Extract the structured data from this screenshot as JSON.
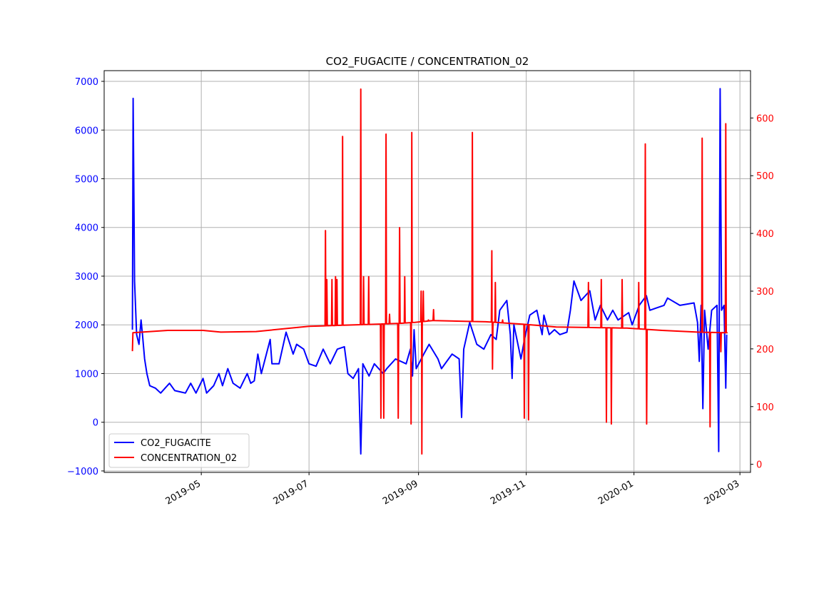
{
  "chart_data": {
    "type": "line",
    "title": "CO2_FUGACITE / CONCENTRATION_02",
    "x_type": "date",
    "x_origin": "2019-03-23",
    "x_unit": "days since x_origin",
    "xlim_days": [
      -16,
      350
    ],
    "x_ticks": [
      {
        "label": "2019-05",
        "day": 39
      },
      {
        "label": "2019-07",
        "day": 100
      },
      {
        "label": "2019-09",
        "day": 162
      },
      {
        "label": "2019-11",
        "day": 223
      },
      {
        "label": "2020-01",
        "day": 284
      },
      {
        "label": "2020-03",
        "day": 344
      }
    ],
    "grid": true,
    "legend_position": "lower-left",
    "left_axis": {
      "ylim": [
        -1030,
        7220
      ],
      "ticks": [
        -1000,
        0,
        1000,
        2000,
        3000,
        4000,
        5000,
        6000,
        7000
      ],
      "tick_labels": [
        "−1000",
        "0",
        "1000",
        "2000",
        "3000",
        "4000",
        "5000",
        "6000",
        "7000"
      ],
      "color": "#0000ff"
    },
    "right_axis": {
      "ylim": [
        -14,
        682
      ],
      "ticks": [
        0,
        100,
        200,
        300,
        400,
        500,
        600
      ],
      "tick_labels": [
        "0",
        "100",
        "200",
        "300",
        "400",
        "500",
        "600"
      ],
      "color": "#ff0000"
    },
    "series": [
      {
        "name": "CO2_FUGACITE",
        "axis": "left",
        "color": "#0000ff",
        "points": [
          [
            0,
            1900
          ],
          [
            0.4,
            6650
          ],
          [
            1.2,
            2900
          ],
          [
            2.4,
            1800
          ],
          [
            3.7,
            1600
          ],
          [
            4.9,
            2100
          ],
          [
            5.7,
            1800
          ],
          [
            6.9,
            1300
          ],
          [
            8.2,
            1000
          ],
          [
            9.8,
            750
          ],
          [
            13,
            700
          ],
          [
            16,
            600
          ],
          [
            21,
            800
          ],
          [
            24,
            650
          ],
          [
            30,
            600
          ],
          [
            33,
            800
          ],
          [
            36,
            600
          ],
          [
            40,
            900
          ],
          [
            42,
            600
          ],
          [
            46,
            750
          ],
          [
            49,
            1000
          ],
          [
            51,
            750
          ],
          [
            54,
            1100
          ],
          [
            57,
            800
          ],
          [
            61,
            700
          ],
          [
            65,
            1000
          ],
          [
            67,
            800
          ],
          [
            69,
            850
          ],
          [
            71,
            1400
          ],
          [
            73,
            1000
          ],
          [
            78,
            1700
          ],
          [
            79,
            1200
          ],
          [
            83,
            1200
          ],
          [
            87,
            1850
          ],
          [
            91,
            1400
          ],
          [
            93,
            1600
          ],
          [
            97,
            1500
          ],
          [
            100,
            1200
          ],
          [
            104,
            1150
          ],
          [
            108,
            1500
          ],
          [
            112,
            1200
          ],
          [
            116,
            1500
          ],
          [
            120,
            1550
          ],
          [
            122,
            1000
          ],
          [
            125,
            900
          ],
          [
            128,
            1100
          ],
          [
            129.3,
            -650
          ],
          [
            130.5,
            1200
          ],
          [
            134,
            950
          ],
          [
            137,
            1200
          ],
          [
            142,
            1000
          ],
          [
            144,
            1100
          ],
          [
            149,
            1300
          ],
          [
            155,
            1200
          ],
          [
            157.4,
            1500
          ],
          [
            158.6,
            950
          ],
          [
            159.5,
            1900
          ],
          [
            160.7,
            1100
          ],
          [
            165,
            1400
          ],
          [
            168,
            1600
          ],
          [
            173,
            1300
          ],
          [
            175,
            1100
          ],
          [
            179,
            1300
          ],
          [
            181,
            1400
          ],
          [
            185,
            1300
          ],
          [
            186.4,
            100
          ],
          [
            187.6,
            1500
          ],
          [
            191,
            2050
          ],
          [
            195,
            1600
          ],
          [
            199,
            1500
          ],
          [
            203,
            1800
          ],
          [
            206,
            1700
          ],
          [
            208,
            2300
          ],
          [
            212,
            2500
          ],
          [
            214,
            1800
          ],
          [
            215,
            900
          ],
          [
            216,
            2000
          ],
          [
            220,
            1300
          ],
          [
            222,
            1700
          ],
          [
            225,
            2200
          ],
          [
            229,
            2300
          ],
          [
            232,
            1800
          ],
          [
            233,
            2200
          ],
          [
            236,
            1800
          ],
          [
            239,
            1900
          ],
          [
            242,
            1800
          ],
          [
            246,
            1850
          ],
          [
            248,
            2300
          ],
          [
            250,
            2900
          ],
          [
            254,
            2500
          ],
          [
            259,
            2700
          ],
          [
            262,
            2100
          ],
          [
            265,
            2400
          ],
          [
            269,
            2100
          ],
          [
            272,
            2300
          ],
          [
            275,
            2100
          ],
          [
            281,
            2250
          ],
          [
            283,
            2000
          ],
          [
            287,
            2400
          ],
          [
            291,
            2600
          ],
          [
            293,
            2300
          ],
          [
            297,
            2350
          ],
          [
            301,
            2400
          ],
          [
            303,
            2550
          ],
          [
            310,
            2400
          ],
          [
            318,
            2450
          ],
          [
            320,
            2050
          ],
          [
            321,
            1250
          ],
          [
            322,
            2400
          ],
          [
            323,
            280
          ],
          [
            324,
            2300
          ],
          [
            326,
            1500
          ],
          [
            328,
            2300
          ],
          [
            331,
            2400
          ],
          [
            332,
            -600
          ],
          [
            332.8,
            6850
          ],
          [
            333.6,
            2300
          ],
          [
            335,
            2400
          ],
          [
            336,
            700
          ],
          [
            336.5,
            1800
          ]
        ]
      },
      {
        "name": "CONCENTRATION_02",
        "axis": "right",
        "color": "#ff0000",
        "baseline": [
          [
            0,
            196
          ],
          [
            0.3,
            228
          ],
          [
            20,
            232
          ],
          [
            40,
            232
          ],
          [
            50,
            229
          ],
          [
            70,
            230
          ],
          [
            100,
            239
          ],
          [
            130,
            242
          ],
          [
            150,
            244
          ],
          [
            160,
            246
          ],
          [
            170,
            249
          ],
          [
            200,
            247
          ],
          [
            220,
            243
          ],
          [
            240,
            238
          ],
          [
            260,
            237
          ],
          [
            280,
            236
          ],
          [
            300,
            232
          ],
          [
            320,
            229
          ],
          [
            337,
            228
          ]
        ],
        "spikes": [
          [
            109.3,
            405
          ],
          [
            110.1,
            320
          ],
          [
            113,
            320
          ],
          [
            115,
            325
          ],
          [
            115.8,
            320
          ],
          [
            119,
            568
          ],
          [
            129.3,
            650
          ],
          [
            130.9,
            325
          ],
          [
            133.8,
            325
          ],
          [
            140.7,
            80
          ],
          [
            142.3,
            80
          ],
          [
            143.6,
            572
          ],
          [
            145.6,
            260
          ],
          [
            150.5,
            80
          ],
          [
            151.3,
            410
          ],
          [
            154.2,
            325
          ],
          [
            157.8,
            70
          ],
          [
            158.2,
            575
          ],
          [
            163.5,
            300
          ],
          [
            163.9,
            18
          ],
          [
            164.7,
            300
          ],
          [
            167.6,
            250
          ],
          [
            170.5,
            268
          ],
          [
            192.5,
            575
          ],
          [
            203.5,
            370
          ],
          [
            203.9,
            165
          ],
          [
            205.5,
            315
          ],
          [
            209.6,
            250
          ],
          [
            221.9,
            80
          ],
          [
            224.3,
            77
          ],
          [
            258.2,
            315
          ],
          [
            265.5,
            320
          ],
          [
            268.4,
            73
          ],
          [
            271.2,
            70
          ],
          [
            277.3,
            320
          ],
          [
            286.7,
            315
          ],
          [
            290.4,
            555
          ],
          [
            291.2,
            70
          ],
          [
            322.6,
            565
          ],
          [
            327.1,
            65
          ],
          [
            333.2,
            195
          ],
          [
            336,
            590
          ]
        ]
      }
    ]
  }
}
